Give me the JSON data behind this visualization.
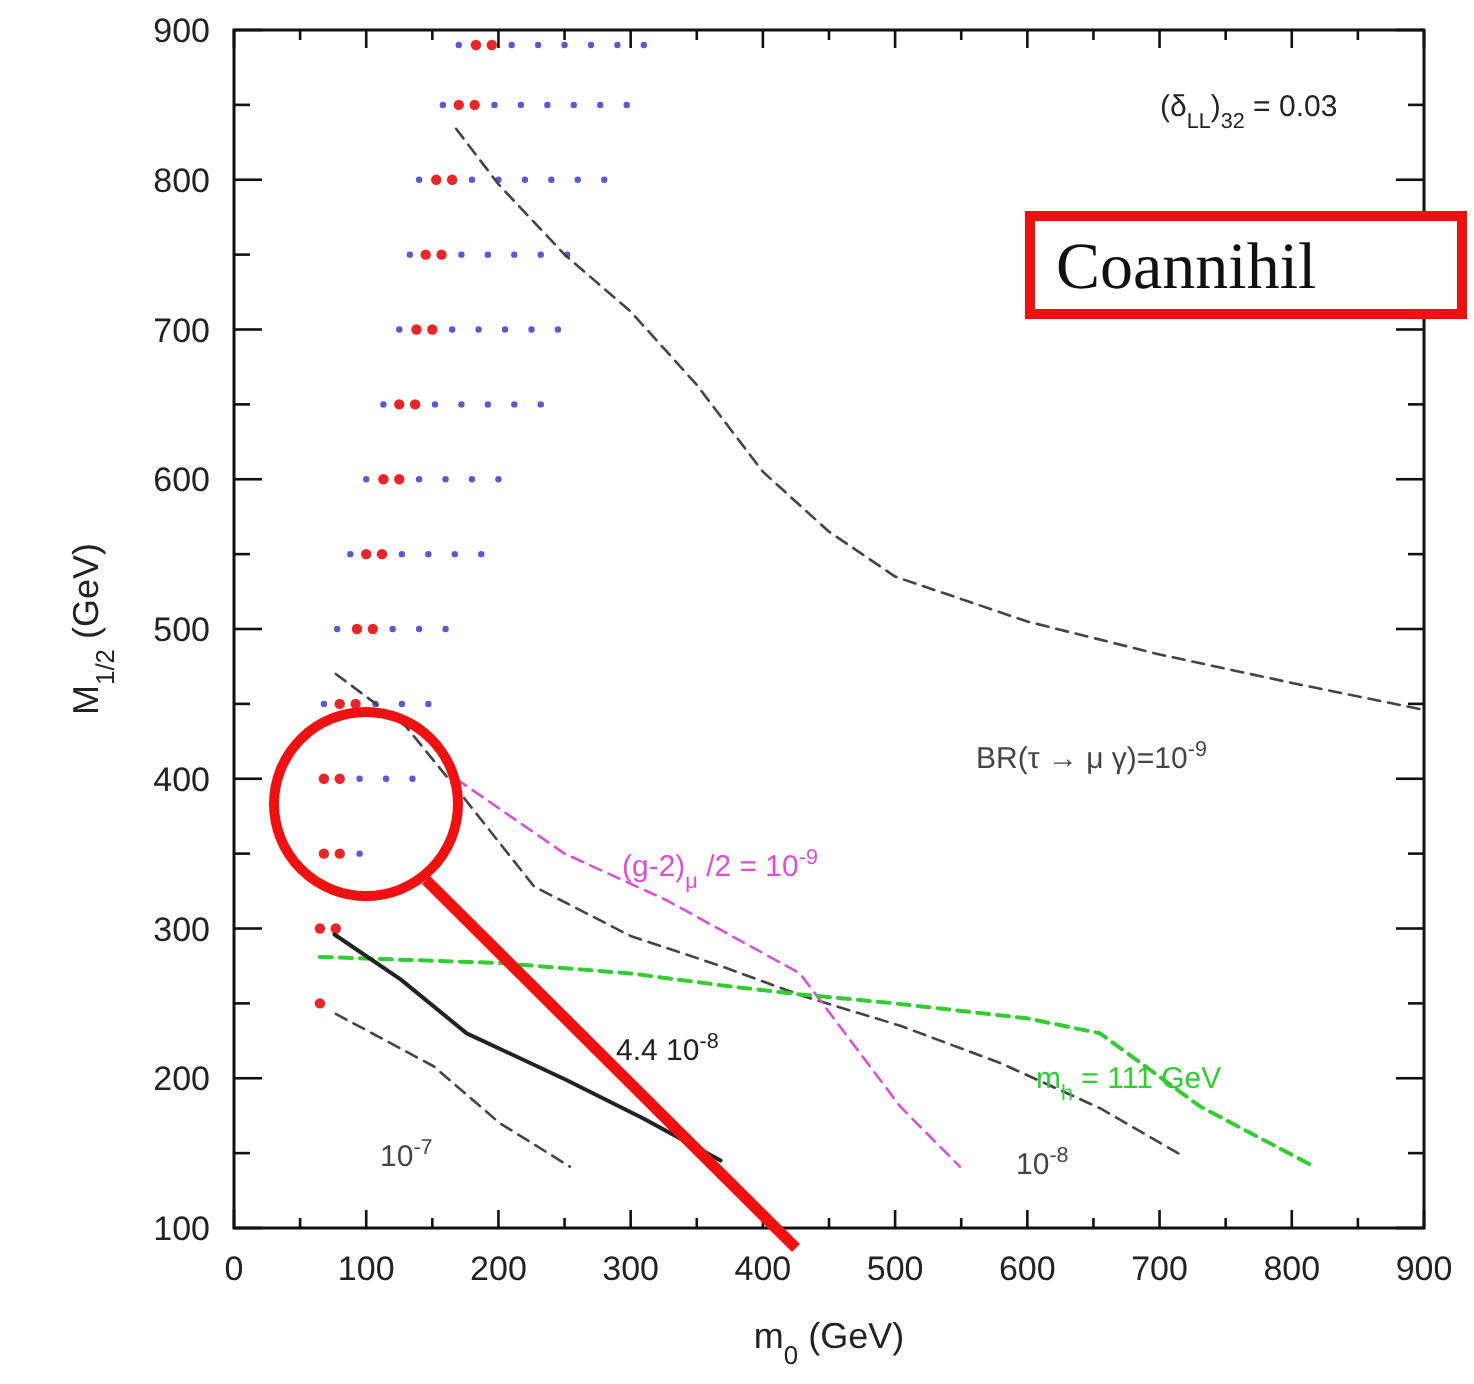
{
  "chart_data": {
    "type": "line",
    "xlabel": "m$_{0}$ (GeV)",
    "ylabel": "M$_{1/2}$ (GeV)",
    "xlim": [
      0,
      900
    ],
    "ylim": [
      100,
      900
    ],
    "xticks": [
      0,
      {
        "value": 50,
        "label": null
      },
      100,
      {
        "value": 150,
        "label": null
      },
      200,
      {
        "value": 250,
        "label": null
      },
      300,
      {
        "value": 350,
        "label": null
      },
      400,
      {
        "value": 450,
        "label": null
      },
      500,
      {
        "value": 550,
        "label": null
      },
      600,
      {
        "value": 650,
        "label": null
      },
      700,
      {
        "value": 750,
        "label": null
      },
      800,
      {
        "value": 850,
        "label": null
      },
      900
    ],
    "yticks": [
      100,
      {
        "value": 150,
        "label": null
      },
      200,
      {
        "value": 250,
        "label": null
      },
      300,
      {
        "value": 350,
        "label": null
      },
      400,
      {
        "value": 450,
        "label": null
      },
      500,
      {
        "value": 550,
        "label": null
      },
      600,
      {
        "value": 650,
        "label": null
      },
      700,
      {
        "value": 750,
        "label": null
      },
      800,
      {
        "value": 850,
        "label": null
      },
      900
    ],
    "grid": false,
    "legend": false,
    "series": [
      {
        "type": "scatter",
        "color": "#5a5ad0",
        "marker": "circle",
        "x": [
          170,
          210,
          230,
          250,
          270,
          290,
          310,
          158,
          197,
          217,
          237,
          257,
          277,
          297,
          140,
          180,
          200,
          220,
          240,
          260,
          280,
          133,
          172,
          192,
          212,
          232,
          252,
          125,
          165,
          185,
          205,
          225,
          245,
          113,
          152,
          172,
          192,
          212,
          232,
          100,
          140,
          160,
          180,
          200,
          88,
          127,
          147,
          167,
          187,
          78,
          120,
          140,
          160,
          68,
          107,
          127,
          147,
          95,
          115,
          135,
          95
        ],
        "values": [
          890,
          890,
          890,
          890,
          890,
          890,
          890,
          850,
          850,
          850,
          850,
          850,
          850,
          850,
          800,
          800,
          800,
          800,
          800,
          800,
          800,
          750,
          750,
          750,
          750,
          750,
          750,
          700,
          700,
          700,
          700,
          700,
          700,
          650,
          650,
          650,
          650,
          650,
          650,
          600,
          600,
          600,
          600,
          600,
          550,
          550,
          550,
          550,
          550,
          500,
          500,
          500,
          500,
          450,
          450,
          450,
          450,
          400,
          400,
          400,
          350
        ]
      },
      {
        "type": "scatter",
        "color": "#e8262a",
        "marker": "circle",
        "x": [
          183,
          195,
          170,
          182,
          153,
          165,
          145,
          157,
          138,
          150,
          125,
          137,
          113,
          125,
          100,
          112,
          93,
          105,
          80,
          92,
          68,
          80,
          68,
          80,
          65,
          77,
          65
        ],
        "values": [
          890,
          890,
          850,
          850,
          800,
          800,
          750,
          750,
          700,
          700,
          650,
          650,
          600,
          600,
          550,
          550,
          500,
          500,
          450,
          450,
          400,
          400,
          350,
          350,
          300,
          300,
          250
        ]
      },
      {
        "type": "line",
        "name": "BR(τ → μ γ)=10$^{-9}$",
        "color": "#444444",
        "line_style": "dashed",
        "x": [
          168,
          200,
          250,
          300,
          350,
          400,
          450,
          500,
          600,
          700,
          800,
          900
        ],
        "values": [
          834,
          797,
          750,
          712,
          663,
          605,
          565,
          535,
          505,
          483,
          464,
          446
        ]
      },
      {
        "type": "line",
        "name": "10$^{-8}$",
        "color": "#444444",
        "line_style": "dashed",
        "x": [
          77,
          130,
          175,
          227,
          300,
          368,
          430,
          504,
          580,
          655,
          716
        ],
        "values": [
          470,
          435,
          386,
          328,
          295,
          275,
          255,
          235,
          210,
          180,
          149
        ]
      },
      {
        "type": "line",
        "name": "(g-2)$_{μ}$ /2 = 10$^{-9}$",
        "color": "#d94fd9",
        "line_style": "dashed",
        "x": [
          168,
          250,
          327,
          428,
          504,
          549
        ],
        "values": [
          400,
          350,
          319,
          270,
          181,
          141
        ]
      },
      {
        "type": "line",
        "name": "m$_{h}$ = 111 GeV",
        "color": "#33cc33",
        "line_style": "dashed",
        "x": [
          65,
          200,
          300,
          378,
          428,
          500,
          600,
          655,
          731,
          817
        ],
        "values": [
          281,
          277,
          270,
          261,
          256,
          250,
          240,
          230,
          181,
          141
        ]
      },
      {
        "type": "line",
        "name": "4.4 10$^{-8}$",
        "color": "#222222",
        "line_style": "solid",
        "x": [
          76,
          126,
          176,
          251,
          310,
          368
        ],
        "values": [
          296,
          266,
          230,
          199,
          173,
          145
        ]
      },
      {
        "type": "line",
        "name": "10$^{-7}$",
        "color": "#444444",
        "line_style": "dashed",
        "x": [
          77,
          151,
          201,
          254
        ],
        "values": [
          243,
          208,
          170,
          141
        ]
      }
    ],
    "annotations": [
      "(δ$_{LL}$)$_{32}$ = 0.03",
      "Coannihil"
    ]
  }
}
